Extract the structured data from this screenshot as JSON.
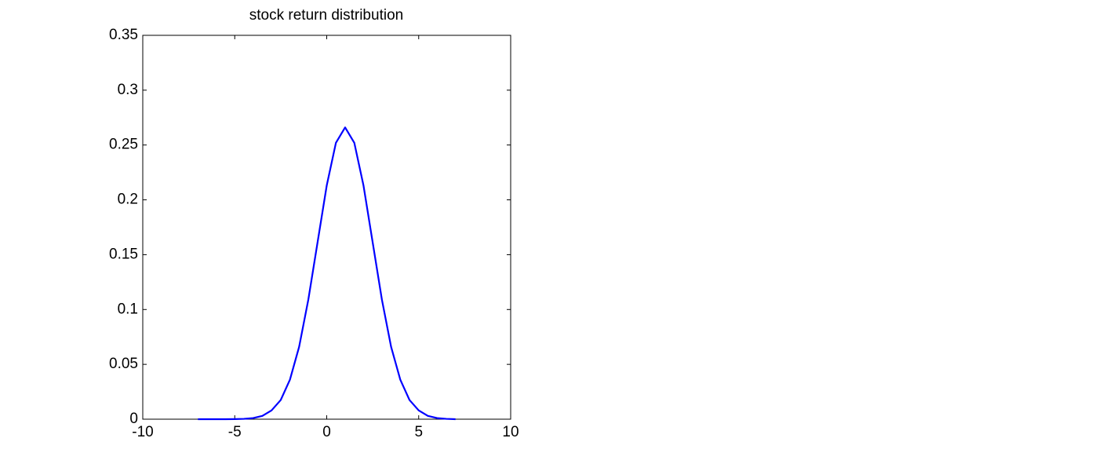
{
  "chart_data": {
    "type": "line",
    "title": "stock return distribution",
    "x": [
      -7,
      -6.5,
      -6,
      -5.5,
      -5,
      -4.5,
      -4,
      -3.5,
      -3,
      -2.5,
      -2,
      -1.5,
      -1,
      -0.5,
      0,
      0.5,
      1,
      1.5,
      2,
      2.5,
      3,
      3.5,
      4,
      4.5,
      5,
      5.5,
      6,
      6.5,
      7
    ],
    "series": [
      {
        "color": "#0000ff",
        "values": [
          0,
          0,
          0,
          0,
          0.0001,
          0.0003,
          0.001,
          0.003,
          0.008,
          0.0175,
          0.036,
          0.066,
          0.109,
          0.161,
          0.213,
          0.252,
          0.266,
          0.252,
          0.213,
          0.161,
          0.109,
          0.066,
          0.036,
          0.0175,
          0.008,
          0.003,
          0.001,
          0.0003,
          0
        ]
      }
    ],
    "xlim": [
      -10,
      10
    ],
    "xticks": [
      -10,
      -5,
      0,
      5,
      10
    ],
    "ylim": [
      0,
      0.35
    ],
    "yticks": [
      0,
      0.05,
      0.1,
      0.15,
      0.2,
      0.25,
      0.3,
      0.35
    ],
    "grid": false
  }
}
